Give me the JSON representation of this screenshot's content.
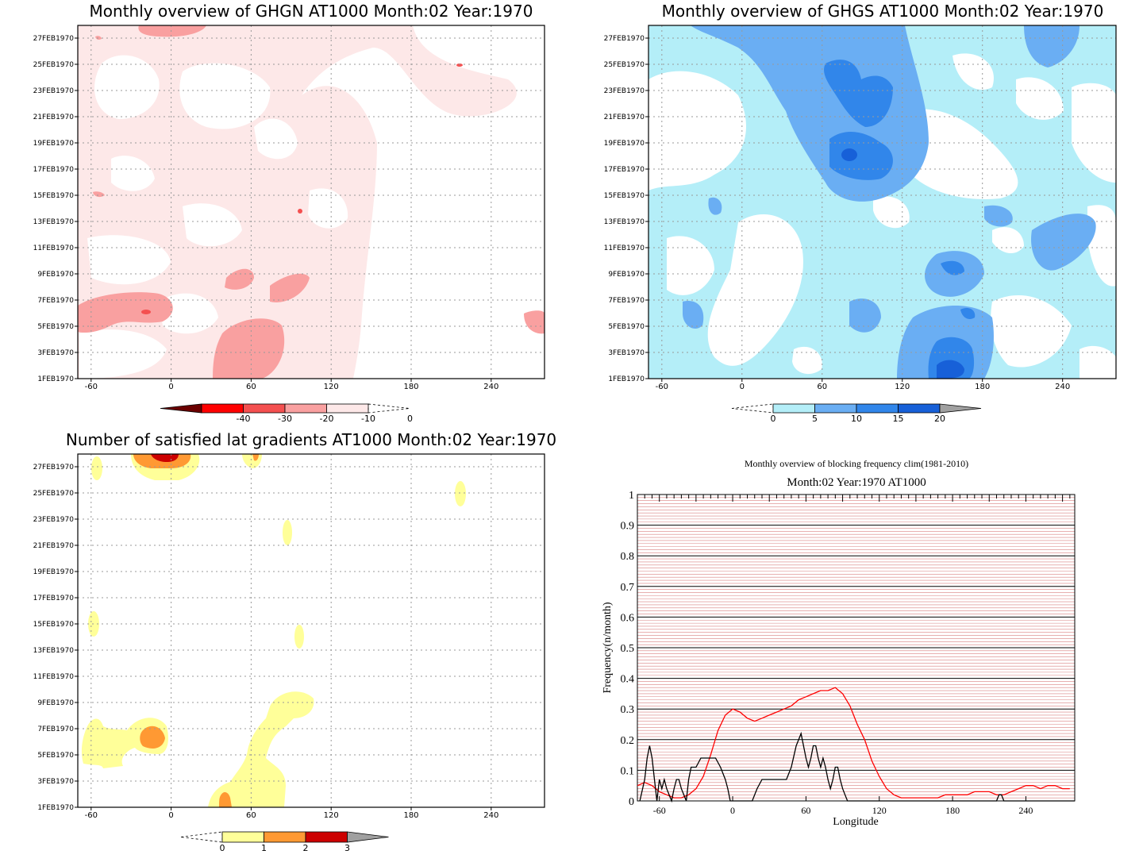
{
  "panels": [
    {
      "title": "Monthly overview of GHGN AT1000 Month:02 Year:1970",
      "colorbar_ticks": [
        "-40",
        "-30",
        "-20",
        "-10",
        "0"
      ],
      "colorbar_colors": [
        "#6b0000",
        "#ff0000",
        "#f45050",
        "#f9a0a0",
        "#fde8e8"
      ]
    },
    {
      "title": "Monthly overview of GHGS AT1000 Month:02 Year:1970",
      "colorbar_ticks": [
        "0",
        "5",
        "10",
        "15",
        "20"
      ],
      "colorbar_colors": [
        "#b4eef8",
        "#6aaef3",
        "#3186ea",
        "#1760d8"
      ]
    },
    {
      "title": "Number of satisfied lat gradients AT1000 Month:02 Year:1970",
      "colorbar_ticks": [
        "0",
        "1",
        "2",
        "3"
      ],
      "colorbar_colors": [
        "#ffff99",
        "#ff9933",
        "#cc0000"
      ]
    }
  ],
  "hovmoller_axes": {
    "y_ticks": [
      "1FEB1970",
      "3FEB1970",
      "5FEB1970",
      "7FEB1970",
      "9FEB1970",
      "11FEB1970",
      "13FEB1970",
      "15FEB1970",
      "17FEB1970",
      "19FEB1970",
      "21FEB1970",
      "23FEB1970",
      "25FEB1970",
      "27FEB1970"
    ],
    "x_ticks": [
      "-60",
      "0",
      "60",
      "120",
      "180",
      "240"
    ]
  },
  "chart_data": [
    {
      "type": "heatmap",
      "title": "Monthly overview of GHGN AT1000 Month:02 Year:1970",
      "x_ticks": [
        -60,
        0,
        60,
        120,
        180,
        240
      ],
      "xlim": [
        -70,
        280
      ],
      "y_ticks": [
        "1FEB1970",
        "3FEB1970",
        "5FEB1970",
        "7FEB1970",
        "9FEB1970",
        "11FEB1970",
        "13FEB1970",
        "15FEB1970",
        "17FEB1970",
        "19FEB1970",
        "21FEB1970",
        "23FEB1970",
        "25FEB1970",
        "27FEB1970"
      ],
      "colorbar": [
        -40,
        -30,
        -20,
        -10,
        0
      ]
    },
    {
      "type": "heatmap",
      "title": "Monthly overview of GHGS AT1000 Month:02 Year:1970",
      "x_ticks": [
        -60,
        0,
        60,
        120,
        180,
        240
      ],
      "xlim": [
        -70,
        280
      ],
      "colorbar": [
        0,
        5,
        10,
        15,
        20
      ]
    },
    {
      "type": "heatmap",
      "title": "Number of satisfied lat gradients AT1000 Month:02 Year:1970",
      "x_ticks": [
        -60,
        0,
        60,
        120,
        180,
        240
      ],
      "xlim": [
        -70,
        280
      ],
      "colorbar": [
        0,
        1,
        2,
        3
      ]
    },
    {
      "type": "line",
      "title": "Monthly overview of blocking frequency clim(1981-2010)",
      "subtitle": "Month:02 Year:1970  AT1000",
      "xlabel": "Longitude",
      "ylabel": "Frequency(n/month)",
      "xlim": [
        -78,
        280
      ],
      "ylim": [
        0,
        1
      ],
      "x_ticks": [
        -60,
        0,
        60,
        120,
        180,
        240
      ],
      "y_ticks": [
        0,
        0.1,
        0.2,
        0.3,
        0.4,
        0.5,
        0.6,
        0.7,
        0.8,
        0.9,
        1
      ],
      "series": [
        {
          "color": "#ff0000",
          "x": [
            -78,
            -72,
            -66,
            -60,
            -54,
            -48,
            -42,
            -36,
            -30,
            -24,
            -18,
            -12,
            -6,
            0,
            6,
            12,
            18,
            24,
            30,
            36,
            42,
            48,
            54,
            60,
            66,
            72,
            78,
            84,
            90,
            96,
            102,
            108,
            114,
            120,
            126,
            132,
            138,
            144,
            150,
            156,
            162,
            168,
            174,
            180,
            186,
            192,
            198,
            204,
            210,
            216,
            222,
            228,
            234,
            240,
            246,
            252,
            258,
            264,
            270,
            276
          ],
          "y": [
            0.05,
            0.06,
            0.05,
            0.03,
            0.02,
            0.01,
            0.01,
            0.02,
            0.04,
            0.08,
            0.15,
            0.23,
            0.28,
            0.3,
            0.29,
            0.27,
            0.26,
            0.27,
            0.28,
            0.29,
            0.3,
            0.31,
            0.33,
            0.34,
            0.35,
            0.36,
            0.36,
            0.37,
            0.35,
            0.31,
            0.25,
            0.2,
            0.13,
            0.08,
            0.04,
            0.02,
            0.01,
            0.01,
            0.01,
            0.01,
            0.01,
            0.01,
            0.02,
            0.02,
            0.02,
            0.02,
            0.03,
            0.03,
            0.03,
            0.02,
            0.02,
            0.03,
            0.04,
            0.05,
            0.05,
            0.04,
            0.05,
            0.05,
            0.04,
            0.04
          ]
        },
        {
          "color": "#000000",
          "x": [
            -76,
            -72,
            -70,
            -68,
            -66,
            -64,
            -62,
            -60,
            -58,
            -56,
            -54,
            -52,
            -50,
            -48,
            -46,
            -44,
            -42,
            -40,
            -38,
            -36,
            -34,
            -30,
            -26,
            -22,
            -18,
            -14,
            -10,
            -6,
            -4,
            -2,
            0,
            4,
            8,
            12,
            16,
            20,
            24,
            28,
            32,
            36,
            40,
            44,
            48,
            52,
            54,
            56,
            58,
            60,
            62,
            64,
            66,
            68,
            70,
            72,
            74,
            76,
            78,
            80,
            82,
            84,
            86,
            88,
            90,
            92,
            94,
            96,
            98,
            100,
            150,
            160,
            170,
            200,
            216,
            218,
            220,
            222,
            280
          ],
          "y": [
            0,
            0.07,
            0.14,
            0.18,
            0.14,
            0.07,
            0.0,
            0.07,
            0.04,
            0.07,
            0.04,
            0.02,
            0.0,
            0.04,
            0.07,
            0.07,
            0.04,
            0.02,
            0.0,
            0.07,
            0.11,
            0.11,
            0.14,
            0.14,
            0.14,
            0.14,
            0.11,
            0.07,
            0.04,
            0.0,
            0.0,
            0.0,
            0.0,
            0.0,
            0.0,
            0.04,
            0.07,
            0.07,
            0.07,
            0.07,
            0.07,
            0.07,
            0.11,
            0.18,
            0.2,
            0.22,
            0.18,
            0.14,
            0.11,
            0.14,
            0.18,
            0.18,
            0.14,
            0.11,
            0.14,
            0.11,
            0.07,
            0.04,
            0.07,
            0.11,
            0.11,
            0.07,
            0.04,
            0.02,
            0.0,
            0.0,
            0.0,
            0.0,
            0.0,
            0.0,
            0.0,
            0.0,
            0.0,
            0.02,
            0.02,
            0.0,
            0.0
          ]
        }
      ]
    }
  ]
}
